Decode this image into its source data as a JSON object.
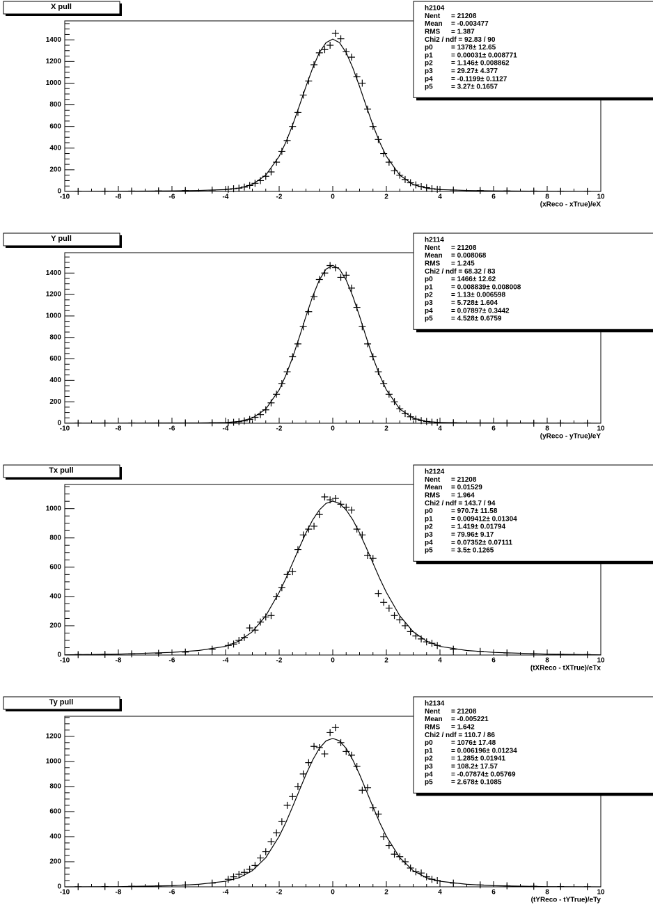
{
  "chart_data": [
    {
      "type": "scatter",
      "title": "X pull",
      "xlabel": "(xReco - xTrue)/eX",
      "xlim": [
        -10,
        10
      ],
      "xticks": [
        -10,
        -8,
        -6,
        -4,
        -2,
        0,
        2,
        4,
        6,
        8,
        10
      ],
      "ylim": [
        0,
        1575
      ],
      "yticks": [
        0,
        200,
        400,
        600,
        800,
        1000,
        1200,
        1400
      ],
      "minor_divisions": 4,
      "stats": {
        "name": "h2104",
        "rows": [
          [
            "Nent",
            "= 21208"
          ],
          [
            "Mean",
            "= -0.003477"
          ],
          [
            "RMS",
            "= 1.387"
          ],
          [
            "Chi2 / ndf = 92.83 / 90",
            ""
          ],
          [
            "p0",
            "= 1378± 12.65"
          ],
          [
            "p1",
            "= 0.00031± 0.008771"
          ],
          [
            "p2",
            "= 1.146± 0.008862"
          ],
          [
            "p3",
            "= 29.27± 4.377"
          ],
          [
            "p4",
            "= -0.1199± 0.1127"
          ],
          [
            "p5",
            "= 3.27± 0.1657"
          ]
        ]
      },
      "series": [
        {
          "style": "points",
          "marker": "+",
          "color": "#000000",
          "x": [
            -9.5,
            -8.5,
            -7.5,
            -6.5,
            -5.5,
            -4.5,
            -3.9,
            -3.7,
            -3.5,
            -3.3,
            -3.1,
            -2.9,
            -2.7,
            -2.5,
            -2.3,
            -2.1,
            -1.9,
            -1.7,
            -1.5,
            -1.3,
            -1.1,
            -0.9,
            -0.7,
            -0.5,
            -0.3,
            -0.1,
            0.1,
            0.3,
            0.5,
            0.7,
            0.9,
            1.1,
            1.3,
            1.5,
            1.7,
            1.9,
            2.1,
            2.3,
            2.5,
            2.7,
            2.9,
            3.1,
            3.3,
            3.5,
            3.7,
            3.9,
            4.5,
            5.5,
            6.5,
            7.5,
            8.5,
            9.5
          ],
          "values": [
            1,
            2,
            3,
            5,
            8,
            12,
            20,
            25,
            30,
            40,
            55,
            75,
            100,
            140,
            180,
            270,
            370,
            470,
            600,
            730,
            890,
            1020,
            1170,
            1280,
            1310,
            1350,
            1460,
            1410,
            1290,
            1240,
            1060,
            1000,
            760,
            600,
            480,
            350,
            270,
            190,
            150,
            110,
            80,
            60,
            45,
            35,
            25,
            20,
            13,
            8,
            5,
            3,
            2,
            1
          ]
        },
        {
          "style": "line",
          "color": "#000000",
          "x": [
            -10,
            -8,
            -6,
            -5,
            -4,
            -3.5,
            -3,
            -2.5,
            -2,
            -1.75,
            -1.5,
            -1.25,
            -1,
            -0.75,
            -0.5,
            -0.25,
            0,
            0.25,
            0.5,
            0.75,
            1,
            1.25,
            1.5,
            1.75,
            2,
            2.5,
            3,
            3.5,
            4,
            5,
            6,
            8,
            10
          ],
          "values": [
            0.3,
            1.5,
            5,
            9,
            17,
            30,
            64,
            150,
            324,
            455,
            611,
            788,
            969,
            1140,
            1282,
            1374,
            1407,
            1374,
            1282,
            1140,
            969,
            788,
            611,
            455,
            324,
            150,
            64,
            30,
            17,
            9,
            5,
            1.5,
            0.3
          ]
        }
      ]
    },
    {
      "type": "scatter",
      "title": "Y pull",
      "xlabel": "(yReco - yTrue)/eY",
      "xlim": [
        -10,
        10
      ],
      "xticks": [
        -10,
        -8,
        -6,
        -4,
        -2,
        0,
        2,
        4,
        6,
        8,
        10
      ],
      "ylim": [
        0,
        1590
      ],
      "yticks": [
        0,
        200,
        400,
        600,
        800,
        1000,
        1200,
        1400
      ],
      "minor_divisions": 4,
      "stats": {
        "name": "h2114",
        "rows": [
          [
            "Nent",
            "= 21208"
          ],
          [
            "Mean",
            "= 0.008068"
          ],
          [
            "RMS",
            "= 1.245"
          ],
          [
            "Chi2 / ndf = 68.32 / 83",
            ""
          ],
          [
            "p0",
            "= 1466± 12.62"
          ],
          [
            "p1",
            "= 0.008839± 0.008008"
          ],
          [
            "p2",
            "= 1.13± 0.006598"
          ],
          [
            "p3",
            "= 5.728± 1.604"
          ],
          [
            "p4",
            "= 0.07897± 0.3442"
          ],
          [
            "p5",
            "= 4.528± 0.6759"
          ]
        ]
      },
      "series": [
        {
          "style": "points",
          "marker": "+",
          "color": "#000000",
          "x": [
            -9.5,
            -8.5,
            -7.5,
            -6.5,
            -5.5,
            -4.5,
            -3.9,
            -3.7,
            -3.5,
            -3.3,
            -3.1,
            -2.9,
            -2.7,
            -2.5,
            -2.3,
            -2.1,
            -1.9,
            -1.7,
            -1.5,
            -1.3,
            -1.1,
            -0.9,
            -0.7,
            -0.5,
            -0.3,
            -0.1,
            0.1,
            0.3,
            0.5,
            0.7,
            0.9,
            1.1,
            1.3,
            1.5,
            1.7,
            1.9,
            2.1,
            2.3,
            2.5,
            2.7,
            2.9,
            3.1,
            3.3,
            3.5,
            3.7,
            3.9,
            4.5,
            5.5,
            6.5,
            7.5,
            8.5,
            9.5
          ],
          "values": [
            1,
            1,
            2,
            2,
            3,
            4,
            6,
            9,
            14,
            22,
            35,
            55,
            80,
            125,
            190,
            270,
            370,
            480,
            620,
            740,
            900,
            1040,
            1180,
            1340,
            1400,
            1470,
            1450,
            1360,
            1380,
            1260,
            1080,
            900,
            740,
            620,
            480,
            370,
            270,
            200,
            135,
            90,
            60,
            38,
            24,
            16,
            10,
            7,
            5,
            3,
            2,
            1,
            1,
            1
          ]
        },
        {
          "style": "line",
          "color": "#000000",
          "x": [
            -10,
            -8,
            -6,
            -5,
            -4,
            -3.5,
            -3,
            -2.5,
            -2,
            -1.75,
            -1.5,
            -1.25,
            -1,
            -0.75,
            -0.5,
            -0.25,
            0,
            0.25,
            0.5,
            0.75,
            1,
            1.25,
            1.5,
            1.75,
            2,
            2.5,
            3,
            3.5,
            4,
            5,
            6,
            8,
            10
          ],
          "values": [
            0.5,
            1.2,
            2.3,
            3,
            7,
            16,
            48,
            132,
            311,
            447,
            612,
            800,
            997,
            1182,
            1336,
            1437,
            1472,
            1437,
            1336,
            1182,
            997,
            800,
            612,
            447,
            311,
            132,
            48,
            16,
            7,
            3,
            2.3,
            1.2,
            0.5
          ]
        }
      ]
    },
    {
      "type": "scatter",
      "title": "Tx pull",
      "xlabel": "(tXReco - tXTrue)/eTx",
      "xlim": [
        -10,
        10
      ],
      "xticks": [
        -10,
        -8,
        -6,
        -4,
        -2,
        0,
        2,
        4,
        6,
        8,
        10
      ],
      "ylim": [
        0,
        1165
      ],
      "yticks": [
        0,
        200,
        400,
        600,
        800,
        1000
      ],
      "minor_divisions": 4,
      "stats": {
        "name": "h2124",
        "rows": [
          [
            "Nent",
            "= 21208"
          ],
          [
            "Mean",
            "= 0.01529"
          ],
          [
            "RMS",
            "= 1.964"
          ],
          [
            "Chi2 / ndf = 143.7 / 94",
            ""
          ],
          [
            "p0",
            "= 970.7± 11.58"
          ],
          [
            "p1",
            "= 0.009412± 0.01304"
          ],
          [
            "p2",
            "= 1.419± 0.01794"
          ],
          [
            "p3",
            "= 79.96±  9.17"
          ],
          [
            "p4",
            "= 0.07352± 0.07111"
          ],
          [
            "p5",
            "=  3.5± 0.1265"
          ]
        ]
      },
      "series": [
        {
          "style": "points",
          "marker": "+",
          "color": "#000000",
          "x": [
            -9.5,
            -8.5,
            -7.5,
            -6.5,
            -5.5,
            -4.5,
            -3.9,
            -3.7,
            -3.5,
            -3.3,
            -3.1,
            -2.9,
            -2.7,
            -2.5,
            -2.3,
            -2.1,
            -1.9,
            -1.7,
            -1.5,
            -1.3,
            -1.1,
            -0.9,
            -0.7,
            -0.5,
            -0.3,
            -0.1,
            0.1,
            0.3,
            0.5,
            0.7,
            0.9,
            1.1,
            1.3,
            1.5,
            1.7,
            1.9,
            2.1,
            2.3,
            2.5,
            2.7,
            2.9,
            3.1,
            3.3,
            3.5,
            3.7,
            3.9,
            4.5,
            5.5,
            6.5,
            7.5,
            8.5,
            9.5
          ],
          "values": [
            3,
            5,
            8,
            12,
            20,
            40,
            65,
            75,
            100,
            120,
            185,
            170,
            225,
            260,
            270,
            400,
            460,
            550,
            570,
            720,
            820,
            860,
            880,
            960,
            1080,
            1060,
            1070,
            1030,
            1010,
            990,
            860,
            820,
            680,
            660,
            420,
            360,
            320,
            270,
            240,
            200,
            160,
            130,
            110,
            90,
            80,
            65,
            40,
            25,
            14,
            8,
            5,
            3
          ]
        },
        {
          "style": "line",
          "color": "#000000",
          "x": [
            -10,
            -8,
            -6,
            -5,
            -4,
            -3.5,
            -3,
            -2.5,
            -2,
            -1.75,
            -1.5,
            -1.25,
            -1,
            -0.75,
            -0.5,
            -0.25,
            0,
            0.25,
            0.5,
            0.75,
            1,
            1.25,
            1.5,
            1.75,
            2,
            2.5,
            3,
            3.5,
            4,
            5,
            6,
            8,
            10
          ],
          "values": [
            1.4,
            5.9,
            18,
            31,
            59,
            95,
            159,
            268,
            428,
            523,
            628,
            733,
            834,
            923,
            991,
            1036,
            1051,
            1036,
            991,
            923,
            834,
            733,
            628,
            523,
            428,
            268,
            159,
            95,
            59,
            31,
            18,
            5.9,
            1.4
          ]
        }
      ]
    },
    {
      "type": "scatter",
      "title": "Ty pull",
      "xlabel": "(tYReco - tYTrue)/eTy",
      "xlim": [
        -10,
        10
      ],
      "xticks": [
        -10,
        -8,
        -6,
        -4,
        -2,
        0,
        2,
        4,
        6,
        8,
        10
      ],
      "ylim": [
        0,
        1360
      ],
      "yticks": [
        0,
        200,
        400,
        600,
        800,
        1000,
        1200
      ],
      "minor_divisions": 4,
      "stats": {
        "name": "h2134",
        "rows": [
          [
            "Nent",
            "= 21208"
          ],
          [
            "Mean",
            "= -0.005221"
          ],
          [
            "RMS",
            "= 1.642"
          ],
          [
            "Chi2 / ndf = 110.7 / 86",
            ""
          ],
          [
            "p0",
            "= 1076± 17.48"
          ],
          [
            "p1",
            "= 0.006196± 0.01234"
          ],
          [
            "p2",
            "= 1.285± 0.01941"
          ],
          [
            "p3",
            "= 108.2± 17.57"
          ],
          [
            "p4",
            "= -0.07874± 0.05769"
          ],
          [
            "p5",
            "= 2.678± 0.1085"
          ]
        ]
      },
      "series": [
        {
          "style": "points",
          "marker": "+",
          "color": "#000000",
          "x": [
            -9.5,
            -8.5,
            -7.5,
            -6.5,
            -5.5,
            -4.5,
            -3.9,
            -3.7,
            -3.5,
            -3.3,
            -3.1,
            -2.9,
            -2.7,
            -2.5,
            -2.3,
            -2.1,
            -1.9,
            -1.7,
            -1.5,
            -1.3,
            -1.1,
            -0.9,
            -0.7,
            -0.5,
            -0.3,
            -0.1,
            0.1,
            0.3,
            0.5,
            0.7,
            0.9,
            1.1,
            1.3,
            1.5,
            1.7,
            1.9,
            2.1,
            2.3,
            2.5,
            2.7,
            2.9,
            3.1,
            3.3,
            3.5,
            3.7,
            3.9,
            4.5,
            5.5,
            6.5,
            7.5,
            8.5,
            9.5
          ],
          "values": [
            1,
            2,
            4,
            8,
            15,
            30,
            60,
            80,
            100,
            115,
            140,
            170,
            230,
            280,
            360,
            430,
            520,
            650,
            720,
            800,
            900,
            990,
            1120,
            1110,
            1060,
            1230,
            1270,
            1150,
            1080,
            1050,
            960,
            770,
            790,
            630,
            580,
            400,
            330,
            260,
            240,
            200,
            150,
            120,
            110,
            80,
            60,
            50,
            30,
            15,
            8,
            4,
            2,
            1
          ]
        },
        {
          "style": "line",
          "color": "#000000",
          "x": [
            -10,
            -8,
            -6,
            -5,
            -4,
            -3.5,
            -3,
            -2.5,
            -2,
            -1.75,
            -1.5,
            -1.25,
            -1,
            -0.75,
            -0.5,
            -0.25,
            0,
            0.25,
            0.5,
            0.75,
            1,
            1.25,
            1.5,
            1.75,
            2,
            2.5,
            3,
            3.5,
            4,
            5,
            6,
            8,
            10
          ],
          "values": [
            0.1,
            1.2,
            8.8,
            20,
            44,
            72,
            129,
            232,
            403,
            513,
            638,
            767,
            896,
            1011,
            1104,
            1164,
            1184,
            1164,
            1104,
            1011,
            896,
            767,
            638,
            513,
            403,
            232,
            129,
            72,
            44,
            20,
            8.8,
            1.2,
            0.1
          ]
        }
      ]
    }
  ]
}
